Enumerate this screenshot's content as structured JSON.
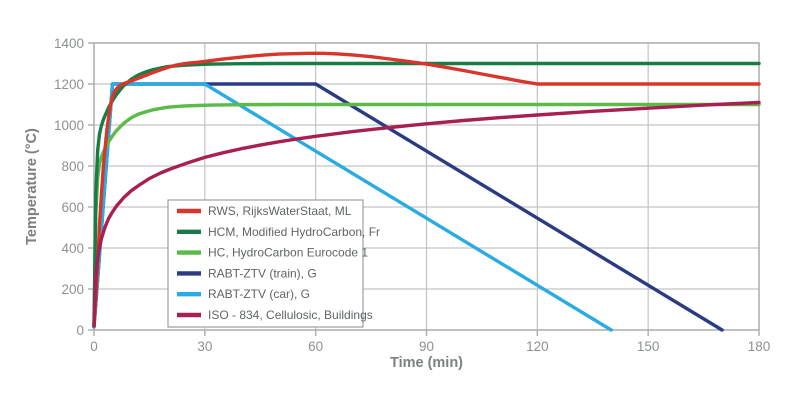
{
  "figure": {
    "background": "#ffffff"
  },
  "chart_data": {
    "type": "line",
    "title": "",
    "xlabel": "Time (min)",
    "ylabel": "Temperature (°C)",
    "xlim": [
      0,
      180
    ],
    "ylim": [
      0,
      1400
    ],
    "xticks": [
      0,
      30,
      60,
      90,
      120,
      150,
      180
    ],
    "yticks": [
      0,
      200,
      400,
      600,
      800,
      1000,
      1200,
      1400
    ],
    "grid": true,
    "legend_position": "inside-lower-left",
    "draw_order": [
      3,
      4,
      2,
      1,
      0,
      5
    ],
    "series": [
      {
        "name": "RWS, RijksWaterStaat, ML",
        "color": "#d8362b",
        "points": [
          [
            0,
            20
          ],
          [
            0.5,
            160
          ],
          [
            1,
            330
          ],
          [
            1.5,
            510
          ],
          [
            2,
            660
          ],
          [
            2.5,
            785
          ],
          [
            3,
            890
          ],
          [
            3.5,
            975
          ],
          [
            4,
            1045
          ],
          [
            4.5,
            1098
          ],
          [
            5,
            1140
          ],
          [
            5.5,
            1160
          ],
          [
            6,
            1175
          ],
          [
            7,
            1192
          ],
          [
            8,
            1202
          ],
          [
            9,
            1208
          ],
          [
            10,
            1214
          ],
          [
            12,
            1228
          ],
          [
            14,
            1242
          ],
          [
            16,
            1256
          ],
          [
            18,
            1269
          ],
          [
            20,
            1281
          ],
          [
            22,
            1291
          ],
          [
            24,
            1298
          ],
          [
            26,
            1303
          ],
          [
            28,
            1306
          ],
          [
            30,
            1310
          ],
          [
            34,
            1320
          ],
          [
            38,
            1328
          ],
          [
            42,
            1335
          ],
          [
            46,
            1341
          ],
          [
            50,
            1346
          ],
          [
            54,
            1348
          ],
          [
            58,
            1350
          ],
          [
            62,
            1350
          ],
          [
            66,
            1347
          ],
          [
            70,
            1342
          ],
          [
            75,
            1333
          ],
          [
            80,
            1322
          ],
          [
            85,
            1310
          ],
          [
            90,
            1297
          ],
          [
            95,
            1282
          ],
          [
            100,
            1266
          ],
          [
            105,
            1249
          ],
          [
            110,
            1232
          ],
          [
            115,
            1215
          ],
          [
            120,
            1200
          ],
          [
            130,
            1200
          ],
          [
            180,
            1200
          ]
        ]
      },
      {
        "name": "HCM, Modified HydroCarbon, Fr",
        "color": "#197c45",
        "points": [
          [
            0,
            20
          ],
          [
            0.5,
            670
          ],
          [
            1,
            877
          ],
          [
            1.5,
            956
          ],
          [
            2,
            996
          ],
          [
            2.5,
            1024
          ],
          [
            3,
            1047
          ],
          [
            4,
            1087
          ],
          [
            5,
            1119
          ],
          [
            6,
            1147
          ],
          [
            7,
            1170
          ],
          [
            8,
            1191
          ],
          [
            10,
            1222
          ],
          [
            12,
            1244
          ],
          [
            14,
            1259
          ],
          [
            16,
            1270
          ],
          [
            18,
            1278
          ],
          [
            20,
            1285
          ],
          [
            24,
            1291
          ],
          [
            28,
            1295
          ],
          [
            32,
            1297
          ],
          [
            40,
            1299
          ],
          [
            50,
            1300
          ],
          [
            180,
            1300
          ]
        ]
      },
      {
        "name": "HC, HydroCarbon Eurocode 1",
        "color": "#5cba48",
        "points": [
          [
            0,
            20
          ],
          [
            0.5,
            568
          ],
          [
            1,
            743
          ],
          [
            1.5,
            809
          ],
          [
            2,
            844
          ],
          [
            2.5,
            866
          ],
          [
            3,
            887
          ],
          [
            4,
            920
          ],
          [
            5,
            947
          ],
          [
            6,
            971
          ],
          [
            8,
            1008
          ],
          [
            10,
            1034
          ],
          [
            12,
            1053
          ],
          [
            14,
            1064
          ],
          [
            16,
            1074
          ],
          [
            18,
            1081
          ],
          [
            20,
            1087
          ],
          [
            24,
            1092
          ],
          [
            28,
            1095
          ],
          [
            32,
            1097
          ],
          [
            40,
            1099
          ],
          [
            50,
            1100
          ],
          [
            180,
            1100
          ]
        ]
      },
      {
        "name": "RABT-ZTV (train), G",
        "color": "#2a3b84",
        "points": [
          [
            0,
            15
          ],
          [
            5,
            1200
          ],
          [
            60,
            1200
          ],
          [
            170,
            0
          ]
        ]
      },
      {
        "name": "RABT-ZTV (car), G",
        "color": "#2aabe2",
        "points": [
          [
            0,
            15
          ],
          [
            5,
            1200
          ],
          [
            30,
            1200
          ],
          [
            140,
            0
          ]
        ]
      },
      {
        "name": "ISO - 834, Cellulosic, Buildings",
        "color": "#a72051",
        "points": [
          [
            0,
            20
          ],
          [
            0.5,
            258
          ],
          [
            1,
            349
          ],
          [
            1.5,
            403
          ],
          [
            2,
            445
          ],
          [
            3,
            503
          ],
          [
            4,
            546
          ],
          [
            5,
            576
          ],
          [
            6,
            603
          ],
          [
            8,
            645
          ],
          [
            10,
            678
          ],
          [
            12,
            704
          ],
          [
            15,
            739
          ],
          [
            18,
            766
          ],
          [
            21,
            788
          ],
          [
            25,
            813
          ],
          [
            30,
            842
          ],
          [
            35,
            865
          ],
          [
            40,
            885
          ],
          [
            45,
            902
          ],
          [
            50,
            918
          ],
          [
            55,
            932
          ],
          [
            60,
            945
          ],
          [
            70,
            968
          ],
          [
            80,
            988
          ],
          [
            90,
            1006
          ],
          [
            100,
            1022
          ],
          [
            110,
            1036
          ],
          [
            120,
            1049
          ],
          [
            135,
            1067
          ],
          [
            150,
            1082
          ],
          [
            165,
            1097
          ],
          [
            180,
            1110
          ]
        ]
      }
    ]
  },
  "style": {
    "grid_color": "#c3c3c3",
    "border_color": "#ababab",
    "tick_color": "#ababab",
    "tick_label_color": "#8d9091",
    "axis_label_color": "#7d8081",
    "legend_border_color": "#9aa0a3",
    "legend_text_color": "#606466",
    "legend_background": "#ffffff"
  }
}
